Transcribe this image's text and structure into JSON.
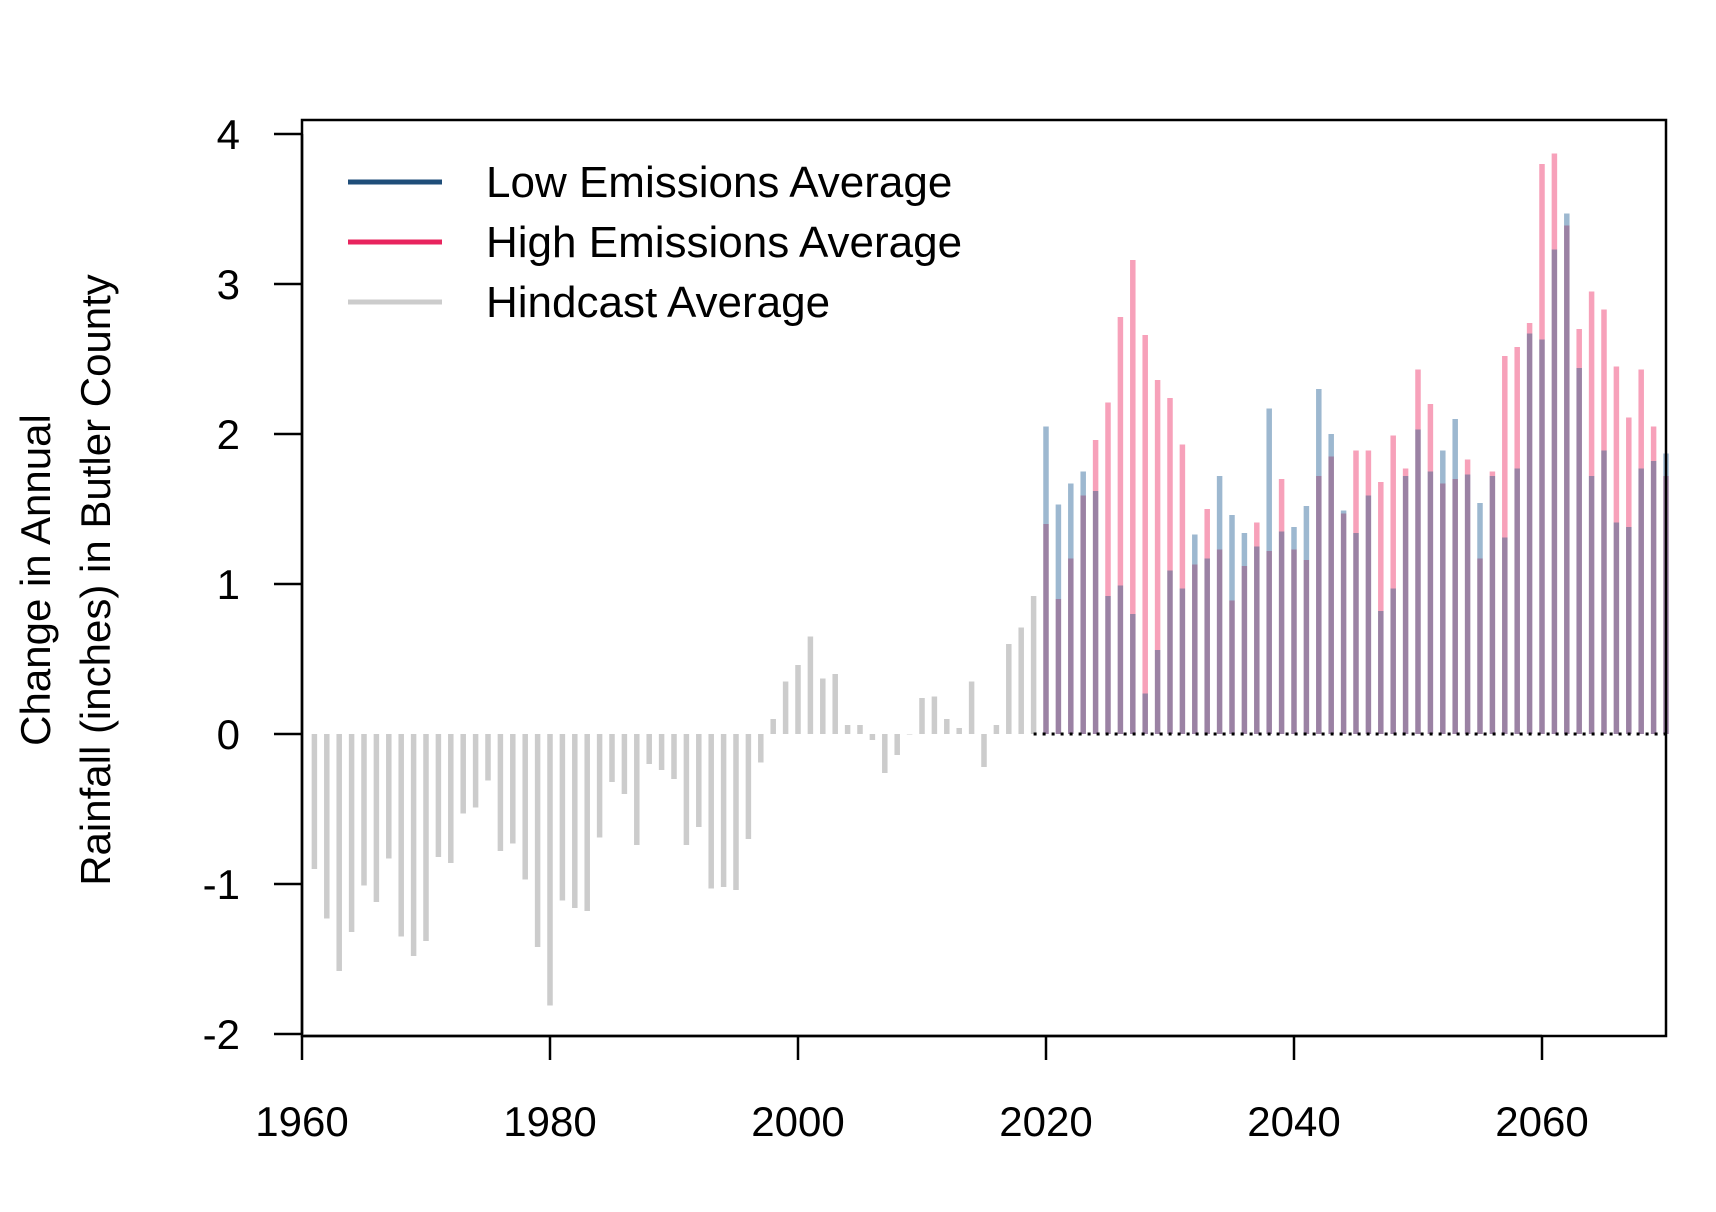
{
  "colors": {
    "low": "#1F4E79",
    "high": "#E8245E",
    "hindcast": "#CCCCCC",
    "low_bar": "#9DB8D0",
    "high_bar": "#F7A1BA",
    "overlap_bar": "#9B82A4"
  },
  "chart_data": {
    "type": "bar",
    "title": "",
    "xlabel": "",
    "ylabel_line1": "Change in Annual",
    "ylabel_line2": "Rainfall (inches) in Butler County",
    "xlim": [
      1960,
      2070
    ],
    "ylim": [
      -2,
      4
    ],
    "x_ticks": [
      "1960",
      "1980",
      "2000",
      "2020",
      "2040",
      "2060"
    ],
    "y_ticks": [
      "-2",
      "-1",
      "0",
      "1",
      "2",
      "3",
      "4"
    ],
    "grid": false,
    "legend_position": "top-left",
    "legend": [
      {
        "label": "Low Emissions Average",
        "color_key": "low"
      },
      {
        "label": "High Emissions Average",
        "color_key": "high"
      },
      {
        "label": "Hindcast Average",
        "color_key": "hindcast"
      }
    ],
    "series": [
      {
        "name": "Hindcast Average",
        "start_year": 1961,
        "values": [
          -0.9,
          -1.23,
          -1.58,
          -1.32,
          -1.01,
          -1.12,
          -0.83,
          -1.35,
          -1.48,
          -1.38,
          -0.82,
          -0.86,
          -0.53,
          -0.49,
          -0.31,
          -0.78,
          -0.73,
          -0.97,
          -1.42,
          -1.81,
          -1.11,
          -1.16,
          -1.18,
          -0.69,
          -0.32,
          -0.4,
          -0.74,
          -0.2,
          -0.24,
          -0.3,
          -0.74,
          -0.62,
          -1.03,
          -1.02,
          -1.04,
          -0.7,
          -0.19,
          0.1,
          0.35,
          0.46,
          0.65,
          0.37,
          0.4,
          0.06,
          0.06,
          -0.04,
          -0.26,
          -0.14,
          0.0,
          0.24,
          0.25,
          0.1,
          0.04,
          0.35,
          -0.22,
          0.06,
          0.6,
          0.71,
          0.92
        ]
      },
      {
        "name": "Low Emissions Average",
        "start_year": 2020,
        "values": [
          2.05,
          1.53,
          1.67,
          1.75,
          1.62,
          0.92,
          0.99,
          0.8,
          0.27,
          0.56,
          1.09,
          0.97,
          1.33,
          1.17,
          1.72,
          1.46,
          1.34,
          1.25,
          2.17,
          1.35,
          1.38,
          1.52,
          2.3,
          2.0,
          1.49,
          1.34,
          1.59,
          0.82,
          0.97,
          1.72,
          2.03,
          1.75,
          1.89,
          2.1,
          1.73,
          1.54,
          1.72,
          1.31,
          1.77,
          2.67,
          2.63,
          3.23,
          3.47,
          2.44,
          1.72,
          1.89,
          1.41,
          1.38,
          1.77,
          1.82,
          1.87
        ]
      },
      {
        "name": "High Emissions Average",
        "start_year": 2020,
        "values": [
          1.4,
          0.9,
          1.17,
          1.59,
          1.96,
          2.21,
          2.78,
          3.16,
          2.66,
          2.36,
          2.24,
          1.93,
          1.13,
          1.5,
          1.23,
          0.89,
          1.12,
          1.41,
          1.22,
          1.7,
          1.23,
          1.16,
          1.72,
          1.85,
          1.47,
          1.89,
          1.89,
          1.68,
          1.99,
          1.77,
          2.43,
          2.2,
          1.67,
          1.7,
          1.83,
          1.17,
          1.75,
          2.52,
          2.58,
          2.74,
          3.8,
          3.87,
          3.39,
          2.7,
          2.95,
          2.83,
          2.45,
          2.11,
          2.43,
          2.05,
          1.72
        ]
      }
    ]
  }
}
